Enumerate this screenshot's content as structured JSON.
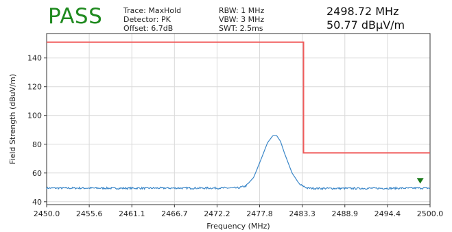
{
  "header": {
    "verdict": "PASS",
    "col1": [
      "Trace: MaxHold",
      "Detector: PK",
      "Offset: 6.7dB"
    ],
    "col2": [
      "RBW: 1 MHz",
      "VBW: 3 MHz",
      "SWT: 2.5ms"
    ],
    "marker_freq": "2498.72 MHz",
    "marker_level": "50.77 dBµV/m"
  },
  "colors": {
    "verdict": "#1f8a1f",
    "limit_line": "#f05a5a",
    "trace": "#3a86c8",
    "marker": "#1a7a1a",
    "grid": "#d9d9d9"
  },
  "chart_data": {
    "type": "line",
    "xlabel": "Frequency (MHz)",
    "ylabel": "Field Strength (dBuV/m)",
    "xlim": [
      2450.0,
      2500.0
    ],
    "ylim": [
      38,
      157
    ],
    "xticks": [
      "2450.0",
      "2455.6",
      "2461.1",
      "2466.7",
      "2472.2",
      "2477.8",
      "2483.3",
      "2488.9",
      "2494.4",
      "2500.0"
    ],
    "yticks": [
      40,
      60,
      80,
      100,
      120,
      140
    ],
    "grid": true,
    "limit_line": {
      "x": [
        2450.0,
        2483.5,
        2483.5,
        2500.0
      ],
      "y": [
        151,
        151,
        74,
        74
      ]
    },
    "trace": {
      "name": "MaxHold",
      "x": [
        2450.0,
        2455.0,
        2460.0,
        2465.0,
        2470.0,
        2475.0,
        2476.0,
        2477.0,
        2478.0,
        2478.8,
        2479.5,
        2480.0,
        2480.5,
        2481.0,
        2482.0,
        2483.0,
        2484.0,
        2485.0,
        2490.0,
        2495.0,
        2500.0
      ],
      "y": [
        49.5,
        49.5,
        49.4,
        49.5,
        49.5,
        49.6,
        51,
        57,
        70,
        81,
        86,
        86,
        82,
        74,
        60,
        52,
        49.5,
        49.3,
        49.3,
        49.4,
        49.5
      ]
    },
    "marker": {
      "x": 2498.72,
      "y": 50.77
    }
  }
}
